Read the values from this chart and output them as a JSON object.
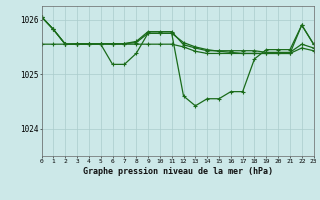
{
  "background_color": "#cce8e8",
  "grid_color": "#aacccc",
  "line_color": "#1a6b1a",
  "marker_color": "#1a6b1a",
  "title": "Graphe pression niveau de la mer (hPa)",
  "xlim": [
    0,
    23
  ],
  "ylim": [
    1023.5,
    1026.25
  ],
  "yticks": [
    1024,
    1025,
    1026
  ],
  "xticks": [
    0,
    1,
    2,
    3,
    4,
    5,
    6,
    7,
    8,
    9,
    10,
    11,
    12,
    13,
    14,
    15,
    16,
    17,
    18,
    19,
    20,
    21,
    22,
    23
  ],
  "series1": [
    [
      0,
      1026.05
    ],
    [
      1,
      1025.82
    ],
    [
      2,
      1025.55
    ],
    [
      3,
      1025.55
    ],
    [
      4,
      1025.55
    ],
    [
      5,
      1025.56
    ],
    [
      6,
      1025.55
    ],
    [
      7,
      1025.56
    ],
    [
      8,
      1025.58
    ],
    [
      9,
      1025.75
    ],
    [
      10,
      1025.75
    ],
    [
      11,
      1025.75
    ],
    [
      12,
      1025.58
    ],
    [
      13,
      1025.5
    ],
    [
      14,
      1025.45
    ],
    [
      15,
      1025.42
    ],
    [
      16,
      1025.4
    ],
    [
      17,
      1025.38
    ],
    [
      18,
      1025.38
    ],
    [
      19,
      1025.38
    ],
    [
      20,
      1025.38
    ],
    [
      21,
      1025.38
    ],
    [
      22,
      1025.9
    ],
    [
      23,
      1025.55
    ]
  ],
  "series2": [
    [
      0,
      1026.05
    ],
    [
      1,
      1025.82
    ],
    [
      2,
      1025.55
    ],
    [
      3,
      1025.56
    ],
    [
      4,
      1025.56
    ],
    [
      5,
      1025.56
    ],
    [
      6,
      1025.56
    ],
    [
      7,
      1025.56
    ],
    [
      8,
      1025.6
    ],
    [
      9,
      1025.78
    ],
    [
      10,
      1025.78
    ],
    [
      11,
      1025.78
    ],
    [
      12,
      1025.54
    ],
    [
      13,
      1025.48
    ],
    [
      14,
      1025.43
    ],
    [
      15,
      1025.43
    ],
    [
      16,
      1025.43
    ],
    [
      17,
      1025.43
    ],
    [
      18,
      1025.43
    ],
    [
      19,
      1025.4
    ],
    [
      20,
      1025.4
    ],
    [
      21,
      1025.4
    ],
    [
      22,
      1025.55
    ],
    [
      23,
      1025.48
    ]
  ],
  "series3": [
    [
      0,
      1025.55
    ],
    [
      1,
      1025.55
    ],
    [
      2,
      1025.55
    ],
    [
      3,
      1025.55
    ],
    [
      4,
      1025.55
    ],
    [
      5,
      1025.55
    ],
    [
      6,
      1025.55
    ],
    [
      7,
      1025.55
    ],
    [
      8,
      1025.55
    ],
    [
      9,
      1025.55
    ],
    [
      10,
      1025.55
    ],
    [
      11,
      1025.55
    ],
    [
      12,
      1025.5
    ],
    [
      13,
      1025.42
    ],
    [
      14,
      1025.38
    ],
    [
      15,
      1025.38
    ],
    [
      16,
      1025.38
    ],
    [
      17,
      1025.38
    ],
    [
      18,
      1025.38
    ],
    [
      19,
      1025.38
    ],
    [
      20,
      1025.38
    ],
    [
      21,
      1025.38
    ],
    [
      22,
      1025.48
    ],
    [
      23,
      1025.43
    ]
  ],
  "series_main": [
    [
      0,
      1026.05
    ],
    [
      1,
      1025.82
    ],
    [
      2,
      1025.55
    ],
    [
      3,
      1025.55
    ],
    [
      4,
      1025.55
    ],
    [
      5,
      1025.55
    ],
    [
      6,
      1025.18
    ],
    [
      7,
      1025.18
    ],
    [
      8,
      1025.38
    ],
    [
      9,
      1025.75
    ],
    [
      10,
      1025.75
    ],
    [
      11,
      1025.75
    ],
    [
      12,
      1024.6
    ],
    [
      13,
      1024.42
    ],
    [
      14,
      1024.55
    ],
    [
      15,
      1024.55
    ],
    [
      16,
      1024.68
    ],
    [
      17,
      1024.68
    ],
    [
      18,
      1025.28
    ],
    [
      19,
      1025.45
    ],
    [
      20,
      1025.45
    ],
    [
      21,
      1025.45
    ],
    [
      22,
      1025.9
    ],
    [
      23,
      1025.55
    ]
  ]
}
